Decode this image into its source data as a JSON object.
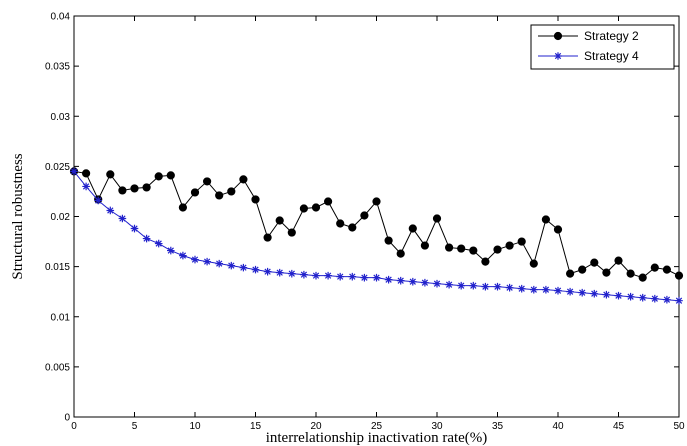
{
  "chart_data": {
    "type": "line",
    "title": "",
    "xlabel": "interrelationship inactivation rate(%)",
    "ylabel": "Structural robustness",
    "xlim": [
      0,
      50
    ],
    "ylim": [
      0,
      0.04
    ],
    "x_ticks": [
      "0",
      "5",
      "10",
      "15",
      "20",
      "25",
      "30",
      "35",
      "40",
      "45",
      "50"
    ],
    "y_ticks": [
      "0",
      "0.005",
      "0.01",
      "0.015",
      "0.02",
      "0.025",
      "0.03",
      "0.035",
      "0.04"
    ],
    "grid": false,
    "legend_position": "top-right",
    "x": [
      0,
      1,
      2,
      3,
      4,
      5,
      6,
      7,
      8,
      9,
      10,
      11,
      12,
      13,
      14,
      15,
      16,
      17,
      18,
      19,
      20,
      21,
      22,
      23,
      24,
      25,
      26,
      27,
      28,
      29,
      30,
      31,
      32,
      33,
      34,
      35,
      36,
      37,
      38,
      39,
      40,
      41,
      42,
      43,
      44,
      45,
      46,
      47,
      48,
      49,
      50
    ],
    "series": [
      {
        "name": "Strategy 2",
        "color": "#000000",
        "marker": "circle",
        "values": [
          0.0245,
          0.0243,
          0.0217,
          0.0242,
          0.0226,
          0.0228,
          0.0229,
          0.024,
          0.0241,
          0.0209,
          0.0224,
          0.0235,
          0.0221,
          0.0225,
          0.0237,
          0.0217,
          0.0179,
          0.0196,
          0.0184,
          0.0208,
          0.0209,
          0.0215,
          0.0193,
          0.0189,
          0.0201,
          0.0215,
          0.0176,
          0.0163,
          0.0188,
          0.0171,
          0.0198,
          0.0169,
          0.0168,
          0.0166,
          0.0155,
          0.0167,
          0.0171,
          0.0175,
          0.0153,
          0.0197,
          0.0187,
          0.0143,
          0.0147,
          0.0154,
          0.0144,
          0.0156,
          0.0143,
          0.0139,
          0.0149,
          0.0147,
          0.0141
        ]
      },
      {
        "name": "Strategy 4",
        "color": "#2222cc",
        "marker": "star",
        "values": [
          0.0245,
          0.023,
          0.0216,
          0.0206,
          0.0198,
          0.0188,
          0.0178,
          0.0173,
          0.0166,
          0.0161,
          0.0157,
          0.0155,
          0.0153,
          0.0151,
          0.0149,
          0.0147,
          0.0145,
          0.0144,
          0.0143,
          0.0142,
          0.0141,
          0.0141,
          0.014,
          0.014,
          0.0139,
          0.0139,
          0.0137,
          0.0136,
          0.0135,
          0.0134,
          0.0133,
          0.0132,
          0.0131,
          0.0131,
          0.013,
          0.013,
          0.0129,
          0.0128,
          0.0127,
          0.0127,
          0.0126,
          0.0125,
          0.0124,
          0.0123,
          0.0122,
          0.0121,
          0.012,
          0.0119,
          0.0118,
          0.0117,
          0.0116
        ]
      }
    ]
  }
}
